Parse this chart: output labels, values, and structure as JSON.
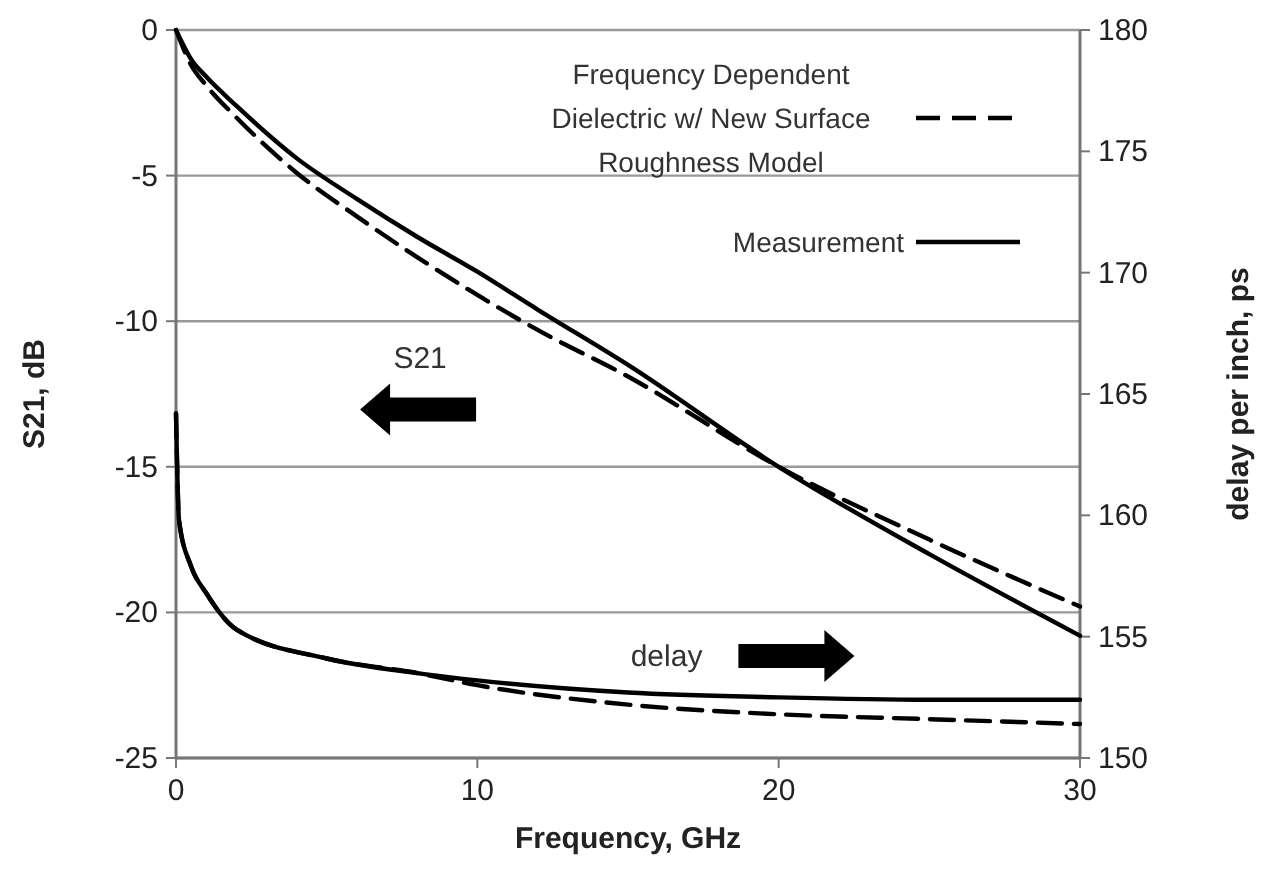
{
  "chart_data": {
    "type": "line",
    "xlabel": "Frequency, GHz",
    "ylabel": "S21, dB",
    "y2label": "delay per inch, ps",
    "xlim": [
      0,
      30
    ],
    "xticks": [
      0,
      10,
      20,
      30
    ],
    "ylim": [
      -25,
      0
    ],
    "yticks": [
      -25,
      -20,
      -15,
      -10,
      -5,
      0
    ],
    "y2lim": [
      150,
      180
    ],
    "y2ticks": [
      150,
      155,
      160,
      165,
      170,
      175,
      180
    ],
    "grid": "y",
    "legend": "top right",
    "marker": "none",
    "series": [
      {
        "name": "Frequency Dependent Dielectric w/ New Surface Roughness Model",
        "color": "#000000",
        "line_style": "dashed",
        "x": [
          0,
          0.5,
          1,
          2,
          4,
          6,
          8,
          10,
          12,
          15,
          20,
          25,
          30
        ],
        "values": [
          0,
          -1.2,
          -1.9,
          -3,
          -4.9,
          -6.4,
          -7.8,
          -9.1,
          -10.3,
          -11.9,
          -15,
          -17.5,
          -19.8
        ]
      },
      {
        "name": "Measurement",
        "color": "#000000",
        "line_style": "solid",
        "x": [
          0,
          0.5,
          1,
          2,
          4,
          6,
          8,
          10,
          12,
          15,
          20,
          25,
          30
        ],
        "values": [
          0,
          -1,
          -1.6,
          -2.6,
          -4.4,
          -5.8,
          -7.1,
          -8.3,
          -9.6,
          -11.5,
          -15,
          -18,
          -20.8
        ]
      },
      {
        "color": "#000000",
        "line_style": "dashed",
        "axis": "y2",
        "x": [
          0,
          0.1,
          0.5,
          1,
          2,
          5,
          8,
          10,
          15,
          20,
          25,
          30
        ],
        "values": [
          164.2,
          159.8,
          157.9,
          156.8,
          155.3,
          154.1,
          153.5,
          153,
          152.2,
          151.8,
          151.6,
          151.4
        ]
      },
      {
        "color": "#000000",
        "line_style": "solid",
        "axis": "y2",
        "x": [
          0,
          0.1,
          0.5,
          1,
          2,
          5,
          8,
          10,
          15,
          20,
          25,
          30
        ],
        "values": [
          164.2,
          159.8,
          157.9,
          156.8,
          155.3,
          154.1,
          153.5,
          153.2,
          152.7,
          152.5,
          152.4,
          152.4
        ]
      }
    ],
    "annotations": [
      "S21",
      "delay"
    ]
  }
}
